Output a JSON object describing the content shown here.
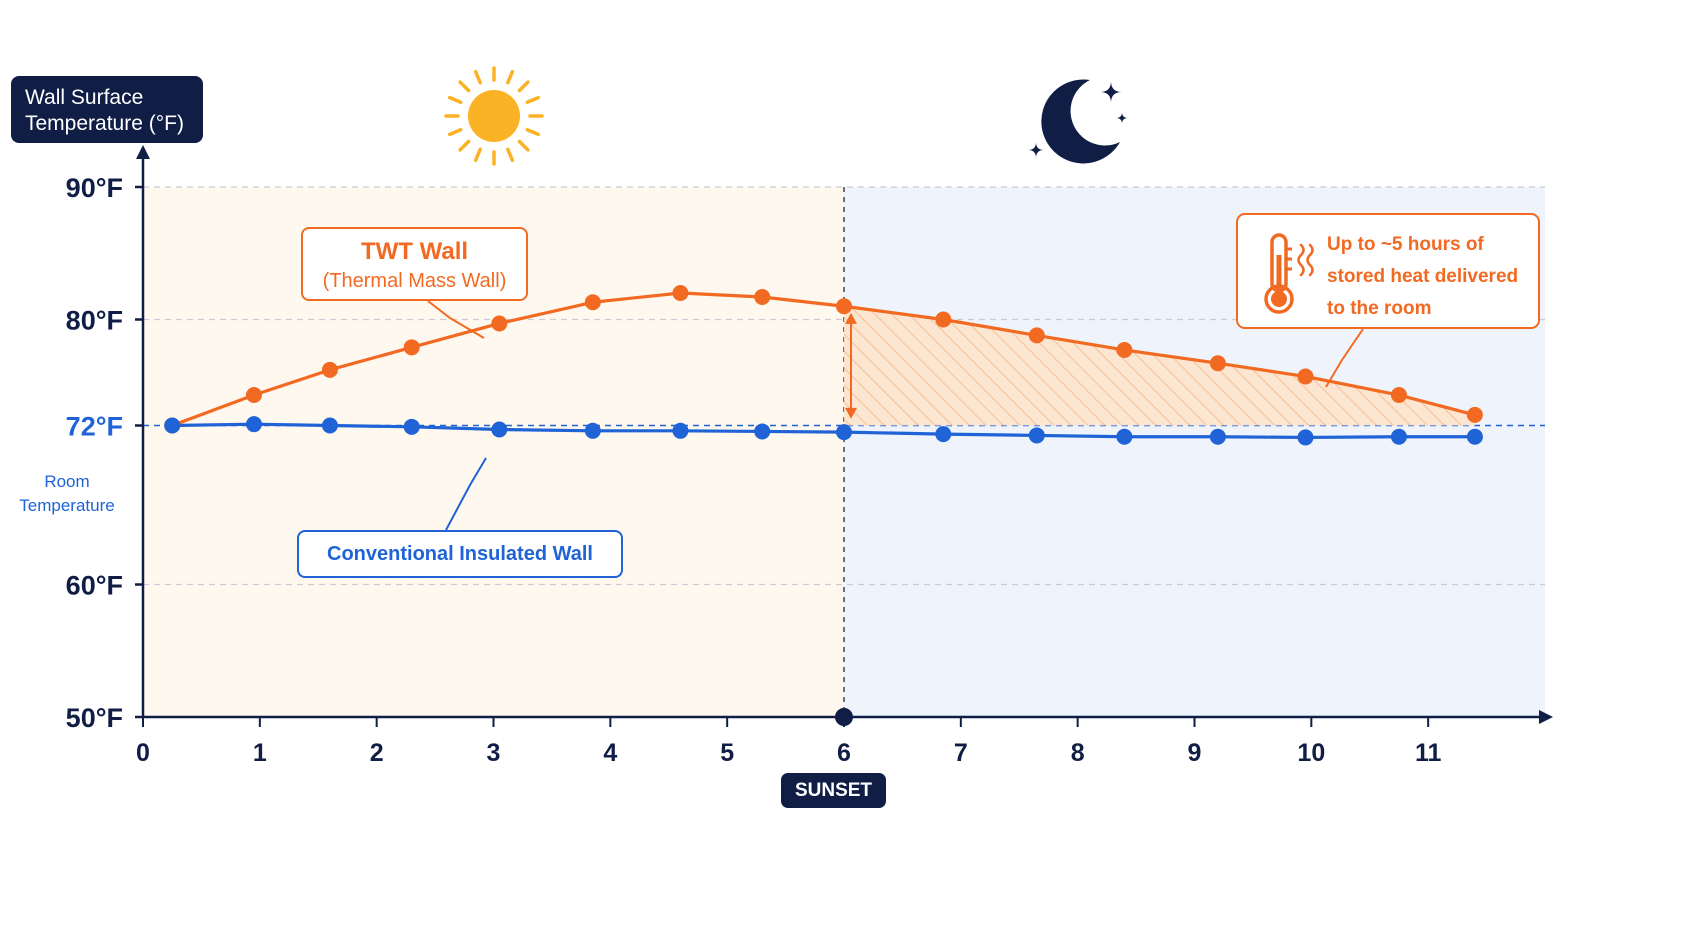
{
  "colors": {
    "twt": "#f26a21",
    "conventional": "#1f63d6",
    "navy": "#101e46",
    "day_bg": "#fff8ef",
    "night_bg": "#eef3fc",
    "sun": "#fbb225"
  },
  "y_axis_label": [
    "Wall Surface",
    "Temperature (°F)"
  ],
  "room_temperature_label": [
    "Room",
    "Temperature"
  ],
  "sunset_label": "SUNSET",
  "icons": {
    "day": "sun-icon",
    "night": "moon-icon",
    "callout": "thermometer-icon"
  },
  "annotations": {
    "twt_title": "TWT Wall",
    "twt_subtitle": "(Thermal Mass Wall)",
    "conventional": "Conventional Insulated Wall",
    "stored_heat": [
      "Up to ~5 hours of",
      "stored heat delivered",
      "to the room"
    ]
  },
  "chart_data": {
    "type": "line",
    "title": "",
    "xlabel": "",
    "ylabel": "Wall Surface Temperature (°F)",
    "xlim": [
      0,
      12
    ],
    "ylim": [
      50,
      90
    ],
    "x_ticks": [
      0,
      1,
      2,
      3,
      4,
      5,
      6,
      7,
      8,
      9,
      10,
      11
    ],
    "y_ticks": [
      {
        "value": 50,
        "label": "50°F"
      },
      {
        "value": 60,
        "label": "60°F"
      },
      {
        "value": 72,
        "label": "72°F"
      },
      {
        "value": 80,
        "label": "80°F"
      },
      {
        "value": 90,
        "label": "90°F"
      }
    ],
    "grid": "horizontal dashed",
    "room_temperature": 72,
    "sunset_x": 6,
    "series": [
      {
        "name": "TWT Wall",
        "x": [
          0.25,
          0.95,
          1.6,
          2.3,
          3.05,
          3.85,
          4.6,
          5.3,
          6.0,
          6.85,
          7.65,
          8.4,
          9.2,
          9.95,
          10.75,
          11.4
        ],
        "values": [
          72.0,
          74.3,
          76.2,
          77.9,
          79.7,
          81.3,
          82.0,
          81.7,
          81.0,
          80.0,
          78.8,
          77.7,
          76.7,
          75.7,
          74.3,
          72.8
        ]
      },
      {
        "name": "Conventional Insulated Wall",
        "x": [
          0.25,
          0.95,
          1.6,
          2.3,
          3.05,
          3.85,
          4.6,
          5.3,
          6.0,
          6.85,
          7.65,
          8.4,
          9.2,
          9.95,
          10.75,
          11.4
        ],
        "values": [
          72.0,
          72.1,
          72.0,
          71.9,
          71.7,
          71.6,
          71.6,
          71.55,
          71.5,
          71.35,
          71.25,
          71.15,
          71.15,
          71.1,
          71.15,
          71.15
        ]
      }
    ]
  }
}
